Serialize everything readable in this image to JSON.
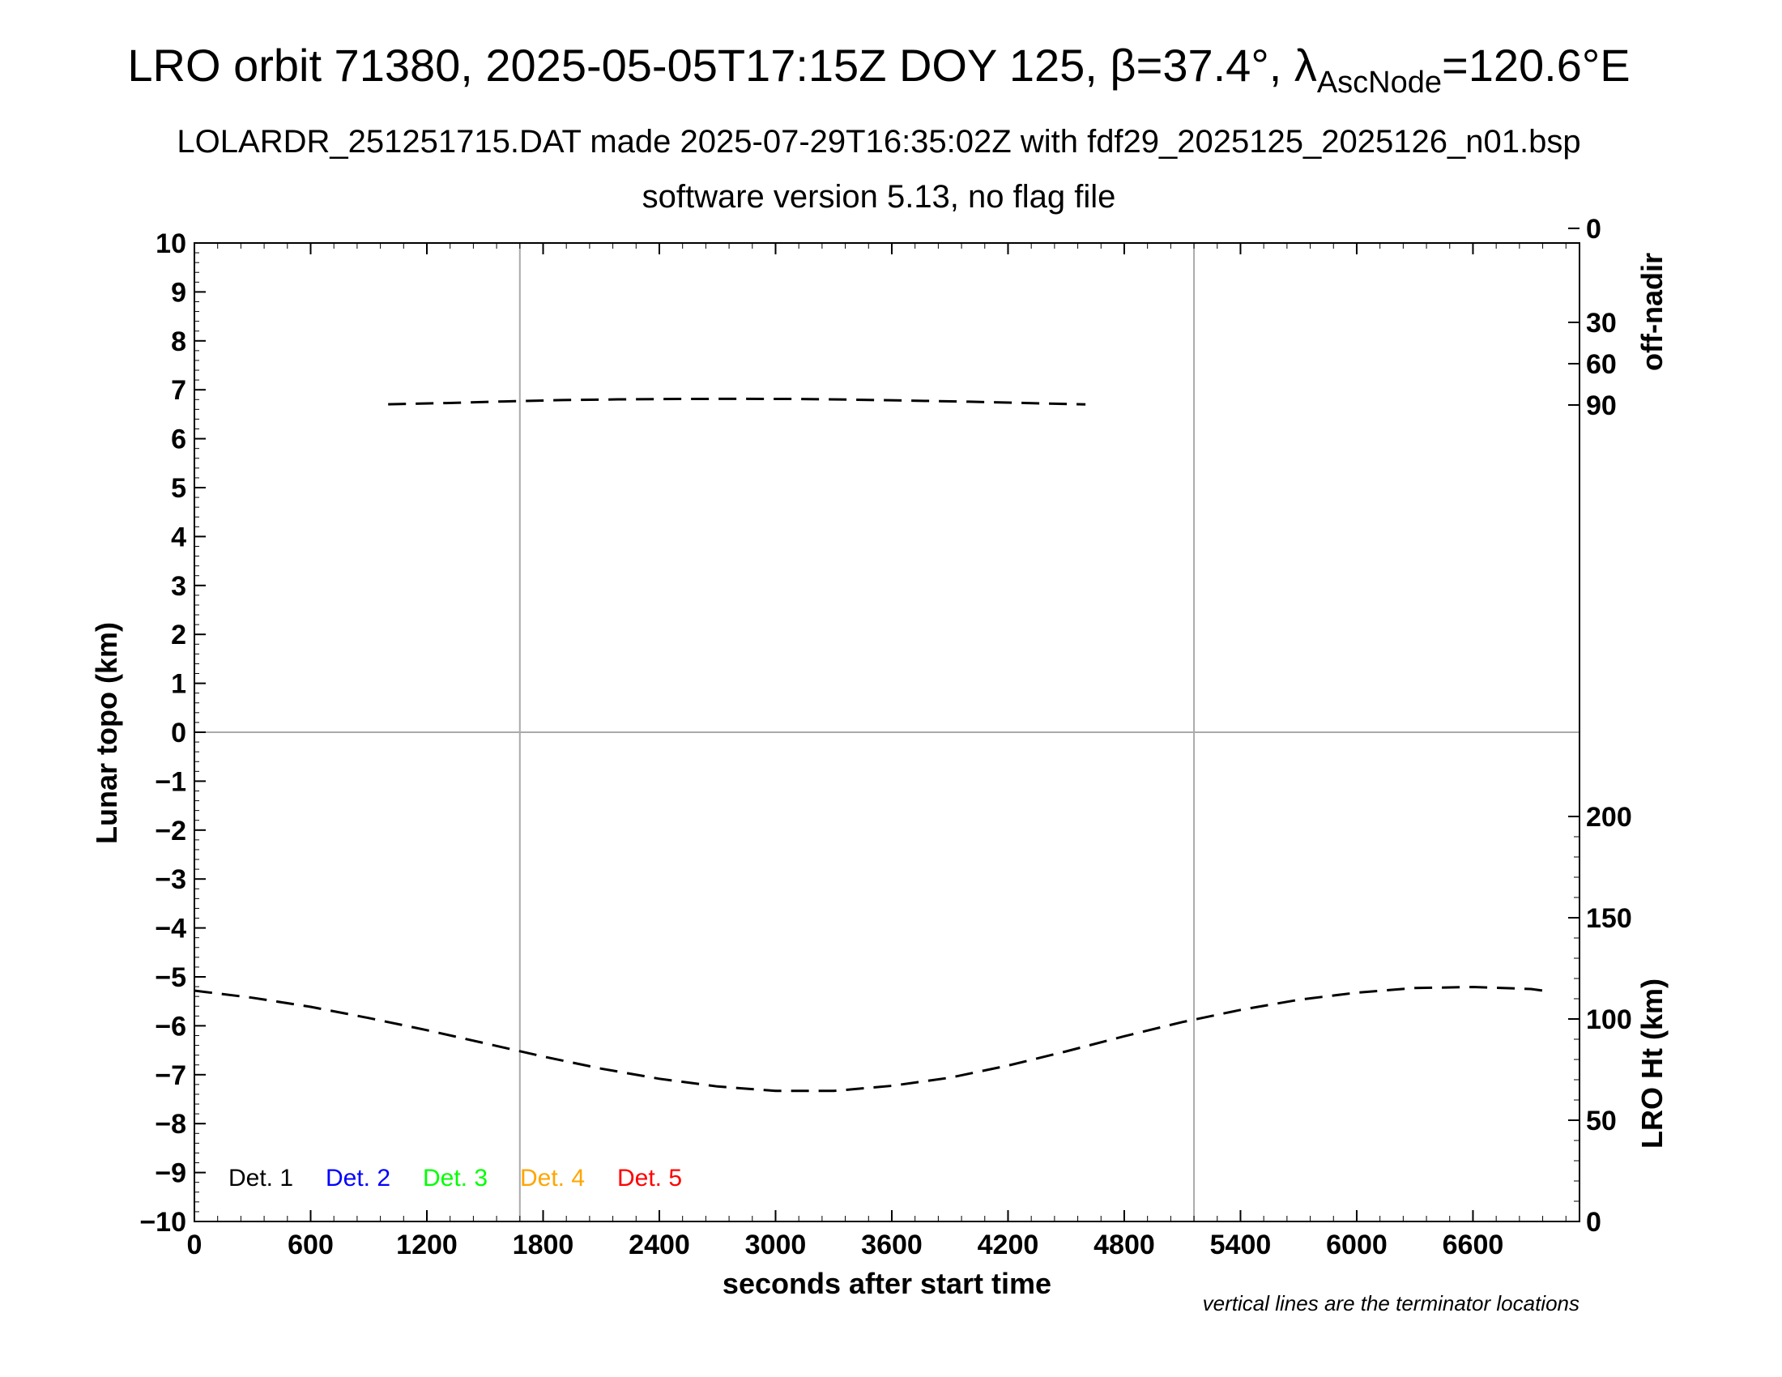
{
  "header": {
    "title_prefix": "LRO orbit 71380, 2025-05-05T17:15Z DOY 125, β=37.4°, λ",
    "title_subscript": "AscNode",
    "title_suffix": "=120.6°E",
    "subtitle1": "LOLARDR_251251715.DAT made 2025-07-29T16:35:02Z with fdf29_2025125_2025126_n01.bsp",
    "subtitle2": "software version 5.13, no flag file"
  },
  "footnote": "vertical lines are the terminator locations",
  "chart_data": {
    "type": "line",
    "xlabel": "seconds after start time",
    "ylabel": "Lunar topo (km)",
    "xlim": [
      0,
      7150
    ],
    "ylim": [
      -10,
      10
    ],
    "x_ticks": [
      0,
      600,
      1200,
      1800,
      2400,
      3000,
      3600,
      4200,
      4800,
      5400,
      6000,
      6600
    ],
    "y_ticks": [
      10,
      9,
      8,
      7,
      6,
      5,
      4,
      3,
      2,
      1,
      0,
      -1,
      -2,
      -3,
      -4,
      -5,
      -6,
      -7,
      -8,
      -9,
      -10
    ],
    "terminator_lines_x": [
      1680,
      5160
    ],
    "zero_line_y": 0,
    "right_axis_top": {
      "label": "off-nadir",
      "tick_labels": [
        "90",
        "60",
        "30",
        "0"
      ],
      "range": [
        0,
        90
      ]
    },
    "right_axis_bottom": {
      "label": "LRO Ht (km)",
      "tick_labels": [
        "200",
        "150",
        "100",
        "50",
        "0"
      ],
      "range": [
        0,
        200
      ]
    },
    "legend": [
      {
        "label": "Det. 1",
        "color": "#000000"
      },
      {
        "label": "Det. 2",
        "color": "#0000ff"
      },
      {
        "label": "Det. 3",
        "color": "#00ff00"
      },
      {
        "label": "Det. 4",
        "color": "#ffa500"
      },
      {
        "label": "Det. 5",
        "color": "#ff0000"
      }
    ],
    "series": [
      {
        "axis": "LRO Ht (km)",
        "style": "dashed",
        "color": "#000000",
        "x": [
          0,
          300,
          600,
          900,
          1200,
          1500,
          1800,
          2100,
          2400,
          2700,
          3000,
          3300,
          3600,
          3900,
          4200,
          4500,
          4800,
          5100,
          5400,
          5700,
          6000,
          6300,
          6600,
          6900,
          7000
        ],
        "y": [
          114,
          110.5,
          106,
          100.5,
          94.5,
          88,
          81.5,
          75.5,
          70.5,
          66.7,
          64.5,
          64.5,
          67,
          71,
          77,
          84,
          91.5,
          98.5,
          104.5,
          109.5,
          113,
          115.3,
          115.8,
          114.8,
          113.5
        ]
      },
      {
        "axis": "off-nadir",
        "style": "dashed",
        "color": "#000000",
        "x": [
          1000,
          1300,
          1600,
          1900,
          2200,
          2500,
          2800,
          3100,
          3400,
          3700,
          4000,
          4300,
          4600
        ],
        "y": [
          89.5,
          88.6,
          87.4,
          86.4,
          85.9,
          85.6,
          85.5,
          85.6,
          86.1,
          86.8,
          87.6,
          88.6,
          89.6
        ]
      }
    ]
  }
}
